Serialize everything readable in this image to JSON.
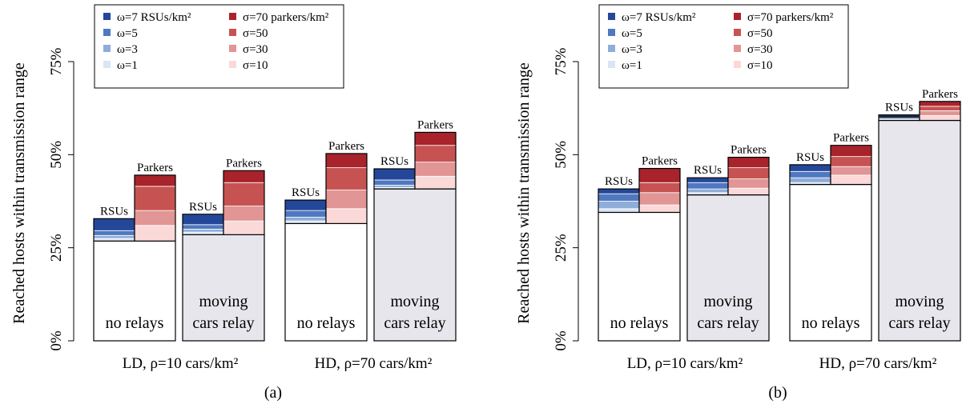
{
  "chart_data": [
    {
      "panel_label": "(a)",
      "type": "bar",
      "variant": "stacked",
      "ylabel": "Reached hosts within transmission range",
      "ylim": [
        0,
        0.8
      ],
      "yticks": [
        "0%",
        "25%",
        "50%",
        "75%"
      ],
      "ytick_values": [
        0,
        0.25,
        0.5,
        0.75
      ],
      "groups": [
        "LD, ρ=10 cars/km²",
        "HD, ρ=70 cars/km²"
      ],
      "legend": {
        "rsu": [
          "ω=7 RSUs/km²",
          "ω=5",
          "ω=3",
          "ω=1"
        ],
        "parkers": [
          "σ=70 parkers/km²",
          "σ=50",
          "σ=30",
          "σ=10"
        ]
      },
      "base_labels": [
        "no relays",
        "moving cars relay",
        "no relays",
        "moving cars relay"
      ],
      "stack_labels": {
        "rsu": "RSUs",
        "parkers": "Parkers"
      },
      "bars": [
        {
          "base": 0.268,
          "rsu": [
            0.275,
            0.283,
            0.296,
            0.328
          ],
          "parkers": [
            0.31,
            0.35,
            0.415,
            0.445
          ]
        },
        {
          "base": 0.285,
          "rsu": [
            0.292,
            0.3,
            0.312,
            0.34
          ],
          "parkers": [
            0.322,
            0.362,
            0.425,
            0.457
          ]
        },
        {
          "base": 0.315,
          "rsu": [
            0.322,
            0.332,
            0.35,
            0.378
          ],
          "parkers": [
            0.355,
            0.405,
            0.465,
            0.503
          ]
        },
        {
          "base": 0.408,
          "rsu": [
            0.412,
            0.418,
            0.432,
            0.462
          ],
          "parkers": [
            0.442,
            0.48,
            0.525,
            0.56
          ]
        }
      ]
    },
    {
      "panel_label": "(b)",
      "type": "bar",
      "variant": "stacked",
      "ylabel": "Reached hosts within transmission range",
      "ylim": [
        0,
        0.8
      ],
      "yticks": [
        "0%",
        "25%",
        "50%",
        "75%"
      ],
      "ytick_values": [
        0,
        0.25,
        0.5,
        0.75
      ],
      "groups": [
        "LD, ρ=10 cars/km²",
        "HD, ρ=70 cars/km²"
      ],
      "legend": {
        "rsu": [
          "ω=7 RSUs/km²",
          "ω=5",
          "ω=3",
          "ω=1"
        ],
        "parkers": [
          "σ=70 parkers/km²",
          "σ=50",
          "σ=30",
          "σ=10"
        ]
      },
      "base_labels": [
        "no relays",
        "moving cars relay",
        "no relays",
        "moving cars relay"
      ],
      "stack_labels": {
        "rsu": "RSUs",
        "parkers": "Parkers"
      },
      "bars": [
        {
          "base": 0.345,
          "rsu": [
            0.355,
            0.375,
            0.395,
            0.408
          ],
          "parkers": [
            0.365,
            0.398,
            0.425,
            0.463
          ]
        },
        {
          "base": 0.392,
          "rsu": [
            0.398,
            0.408,
            0.425,
            0.438
          ],
          "parkers": [
            0.41,
            0.435,
            0.465,
            0.493
          ]
        },
        {
          "base": 0.42,
          "rsu": [
            0.425,
            0.438,
            0.455,
            0.473
          ],
          "parkers": [
            0.445,
            0.468,
            0.495,
            0.525
          ]
        },
        {
          "base": 0.592,
          "rsu": [
            0.595,
            0.598,
            0.6,
            0.607
          ],
          "parkers": [
            0.605,
            0.618,
            0.63,
            0.643
          ]
        }
      ]
    }
  ],
  "colors": {
    "base_no_relays": "#ffffff",
    "base_moving": "#e6e6ec",
    "rsu": [
      "#24479a",
      "#4f78c0",
      "#8fadd9",
      "#dbe5f3"
    ],
    "parkers": [
      "#a8232b",
      "#c65352",
      "#e19594",
      "#fad9d8"
    ],
    "top_band_b4": "#1b2844"
  }
}
